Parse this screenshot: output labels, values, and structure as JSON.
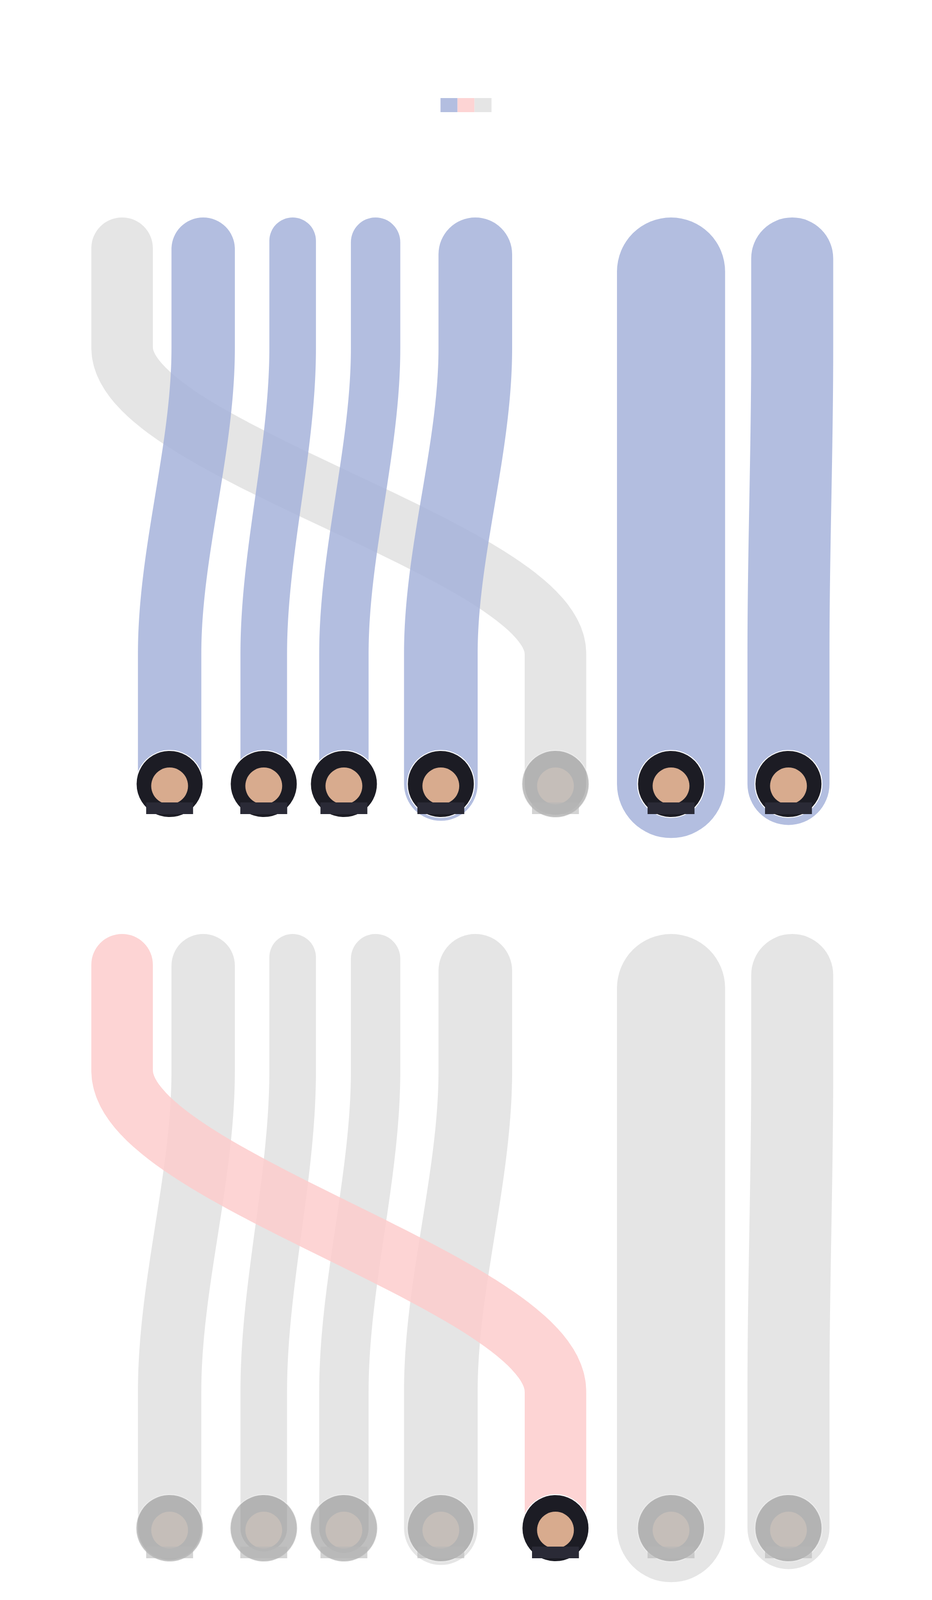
{
  "legend": {
    "colors": [
      "#a6b3db",
      "#fdcccc",
      "#e0e0e0"
    ]
  },
  "chart_data": [
    {
      "type": "flow",
      "xlim": [
        0,
        100
      ],
      "tick_labels": false,
      "flows": [
        {
          "from": 13.1,
          "to": 59.6,
          "width": 6.6,
          "color": "#e0e0e0"
        },
        {
          "from": 21.8,
          "to": 18.2,
          "width": 6.8,
          "color": "#a6b3db"
        },
        {
          "from": 31.4,
          "to": 28.3,
          "width": 5.0,
          "color": "#a6b3db"
        },
        {
          "from": 40.3,
          "to": 36.9,
          "width": 5.3,
          "color": "#a6b3db"
        },
        {
          "from": 51.0,
          "to": 47.3,
          "width": 7.9,
          "color": "#a6b3db"
        },
        {
          "from": 72.0,
          "to": 72.0,
          "width": 11.6,
          "color": "#a6b3db"
        },
        {
          "from": 85.0,
          "to": 84.6,
          "width": 8.8,
          "color": "#a6b3db"
        }
      ]
    },
    {
      "type": "flow",
      "xlim": [
        0,
        100
      ],
      "tick_labels": false,
      "flows": [
        {
          "from": 21.8,
          "to": 18.2,
          "width": 6.8,
          "color": "#e0e0e0"
        },
        {
          "from": 31.4,
          "to": 28.3,
          "width": 5.0,
          "color": "#e0e0e0"
        },
        {
          "from": 40.3,
          "to": 36.9,
          "width": 5.3,
          "color": "#e0e0e0"
        },
        {
          "from": 51.0,
          "to": 47.3,
          "width": 7.9,
          "color": "#e0e0e0"
        },
        {
          "from": 72.0,
          "to": 72.0,
          "width": 11.6,
          "color": "#e0e0e0"
        },
        {
          "from": 85.0,
          "to": 84.6,
          "width": 8.8,
          "color": "#e0e0e0"
        },
        {
          "from": 13.1,
          "to": 59.6,
          "width": 6.6,
          "color": "#fdcccc"
        }
      ]
    }
  ]
}
